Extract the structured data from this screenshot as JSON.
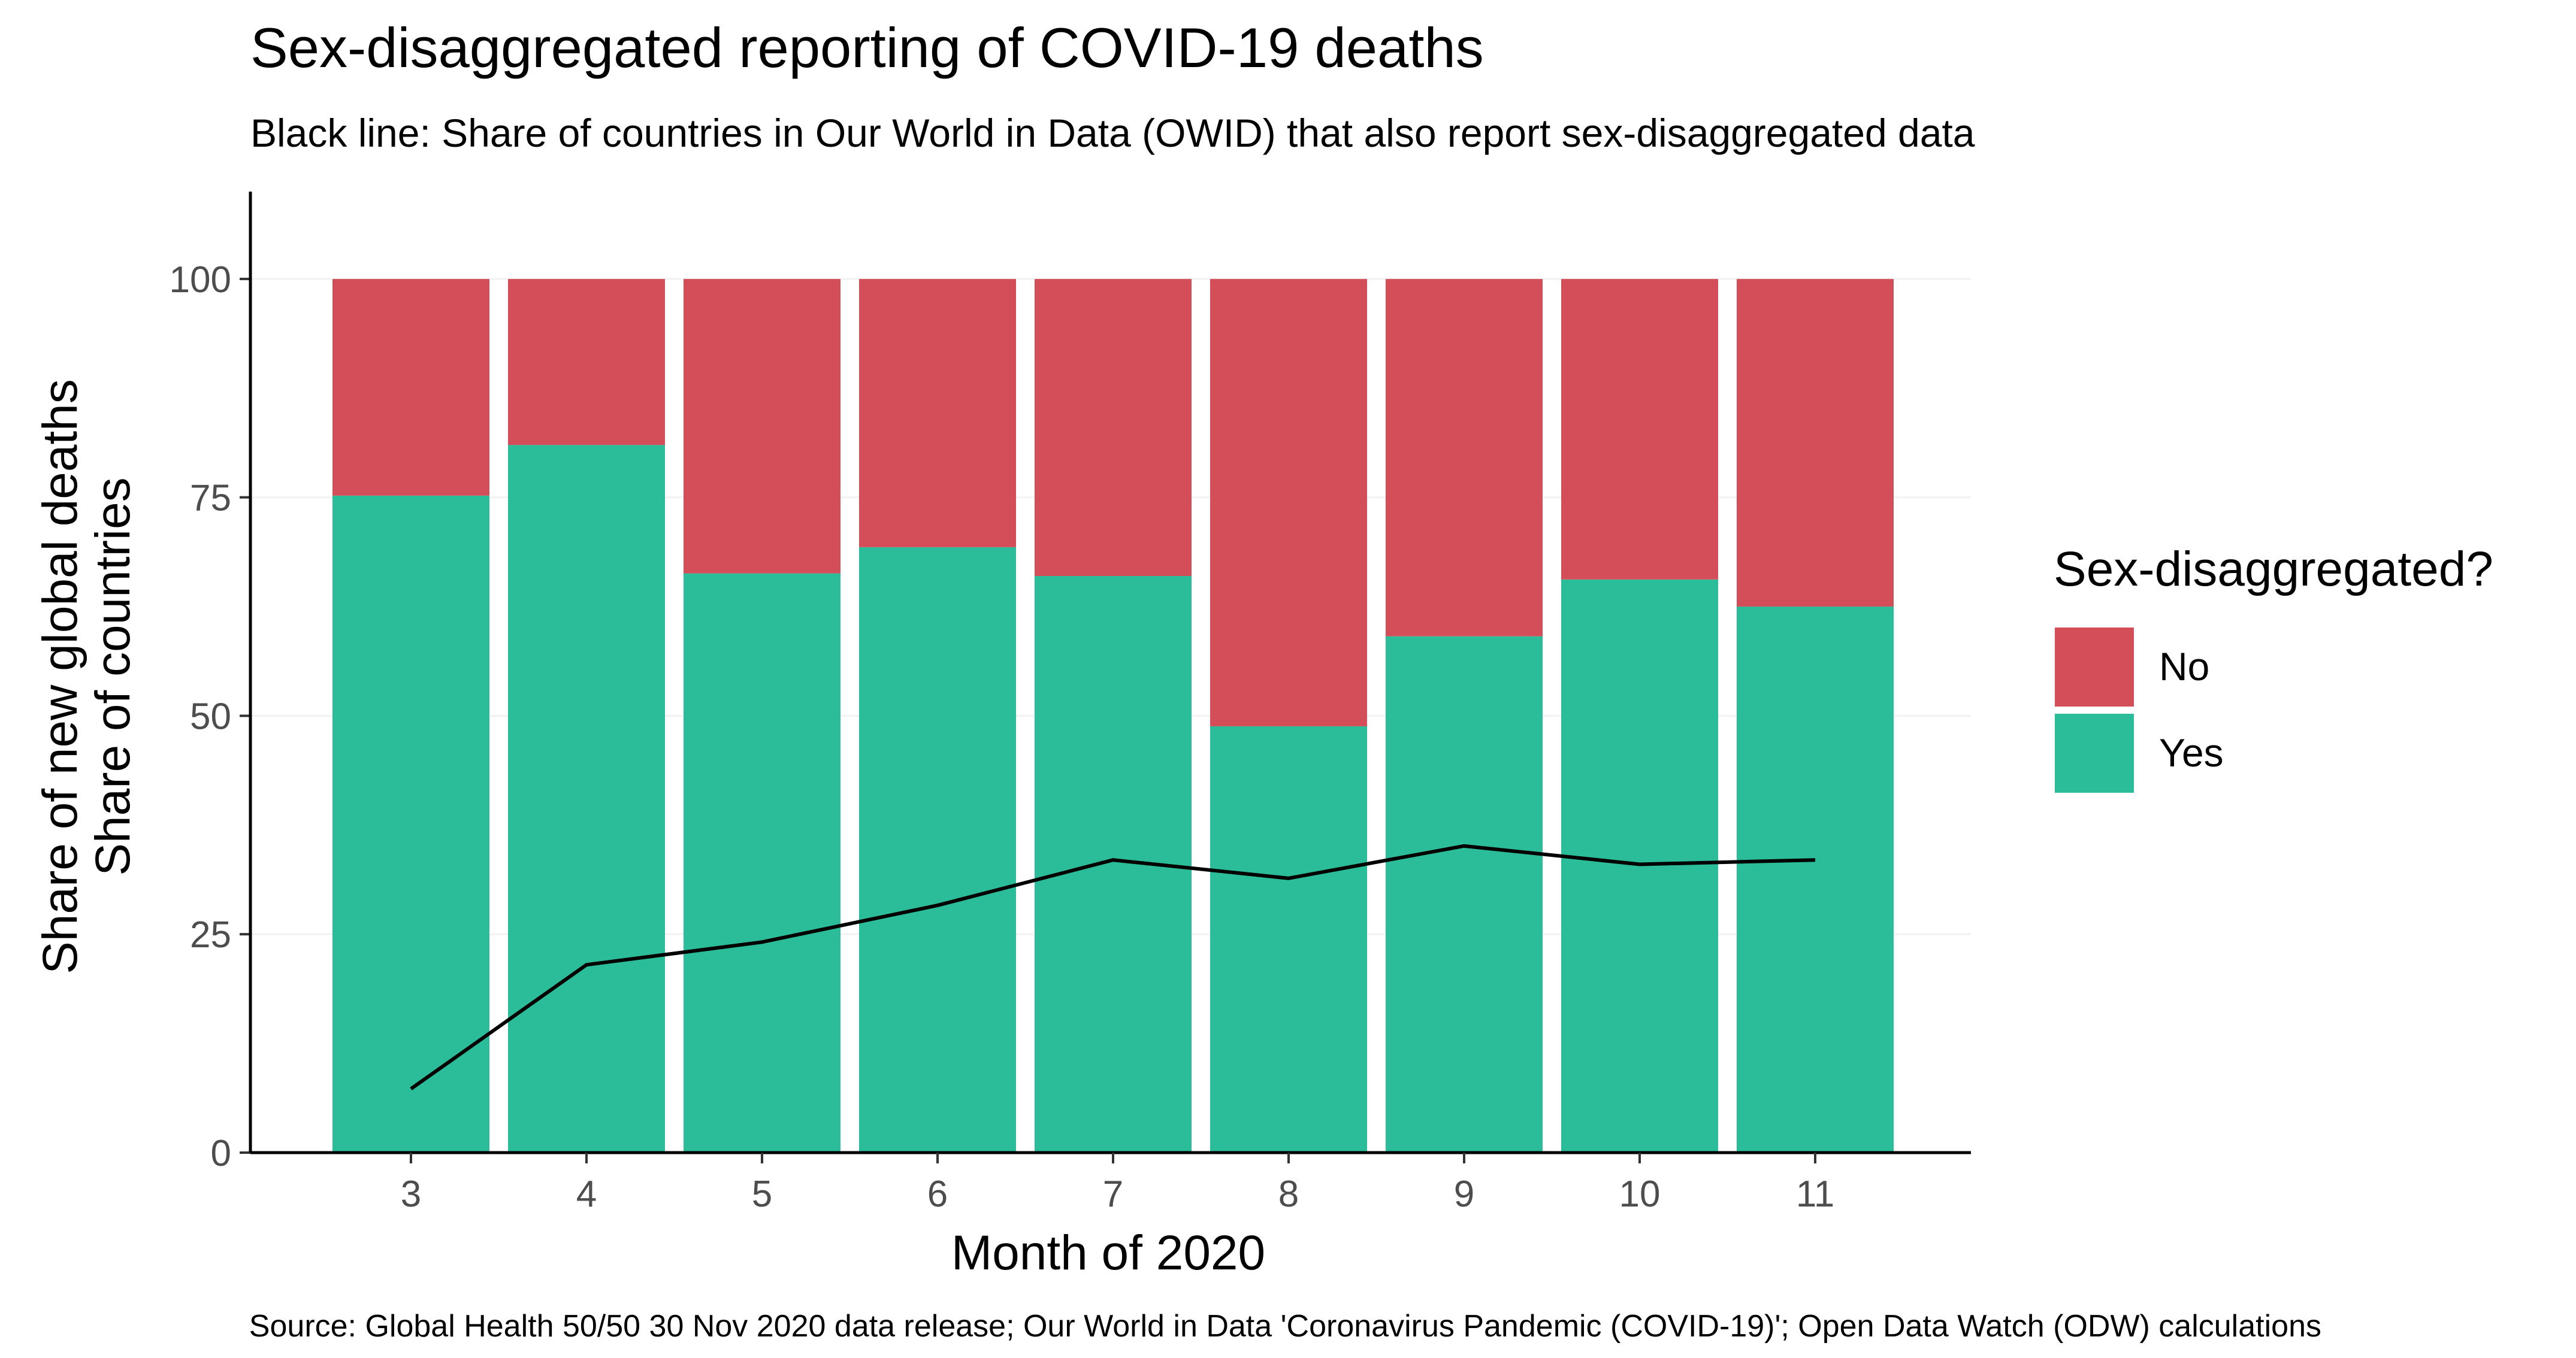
{
  "chart_data": {
    "type": "bar",
    "title": "Sex-disaggregated reporting of COVID-19 deaths",
    "subtitle": "Black line: Share of countries in Our World in Data (OWID) that also report sex-disaggregated data",
    "xlabel": "Month of 2020",
    "ylabel_line1": "Share of new global deaths",
    "ylabel_line2": "Share of countries",
    "caption": "Source: Global Health 50/50 30 Nov 2020 data release; Our World in Data 'Coronavirus Pandemic (COVID-19)'; Open Data Watch (ODW) calculations",
    "categories": [
      "3",
      "4",
      "5",
      "6",
      "7",
      "8",
      "9",
      "10",
      "11"
    ],
    "ylim": [
      0,
      110
    ],
    "yticks": [
      0,
      25,
      50,
      75,
      100
    ],
    "stacked": true,
    "series": [
      {
        "name": "Yes",
        "color": "#2bbc9a",
        "values": [
          75.2,
          81.0,
          66.3,
          69.3,
          66.0,
          48.8,
          59.1,
          65.6,
          62.5
        ]
      },
      {
        "name": "No",
        "color": "#d44e5a",
        "values": [
          24.8,
          19.0,
          33.7,
          30.7,
          34.0,
          51.2,
          40.9,
          34.4,
          37.5
        ]
      }
    ],
    "line": {
      "color": "#000000",
      "values": [
        7.3,
        21.5,
        24.1,
        28.3,
        33.5,
        31.4,
        35.1,
        33.0,
        33.5
      ]
    },
    "legend": {
      "title": "Sex-disaggregated?",
      "position": "right",
      "items": [
        {
          "label": "No",
          "color": "#d44e5a"
        },
        {
          "label": "Yes",
          "color": "#2bbc9a"
        }
      ]
    },
    "grid": "horizontal-faint"
  }
}
